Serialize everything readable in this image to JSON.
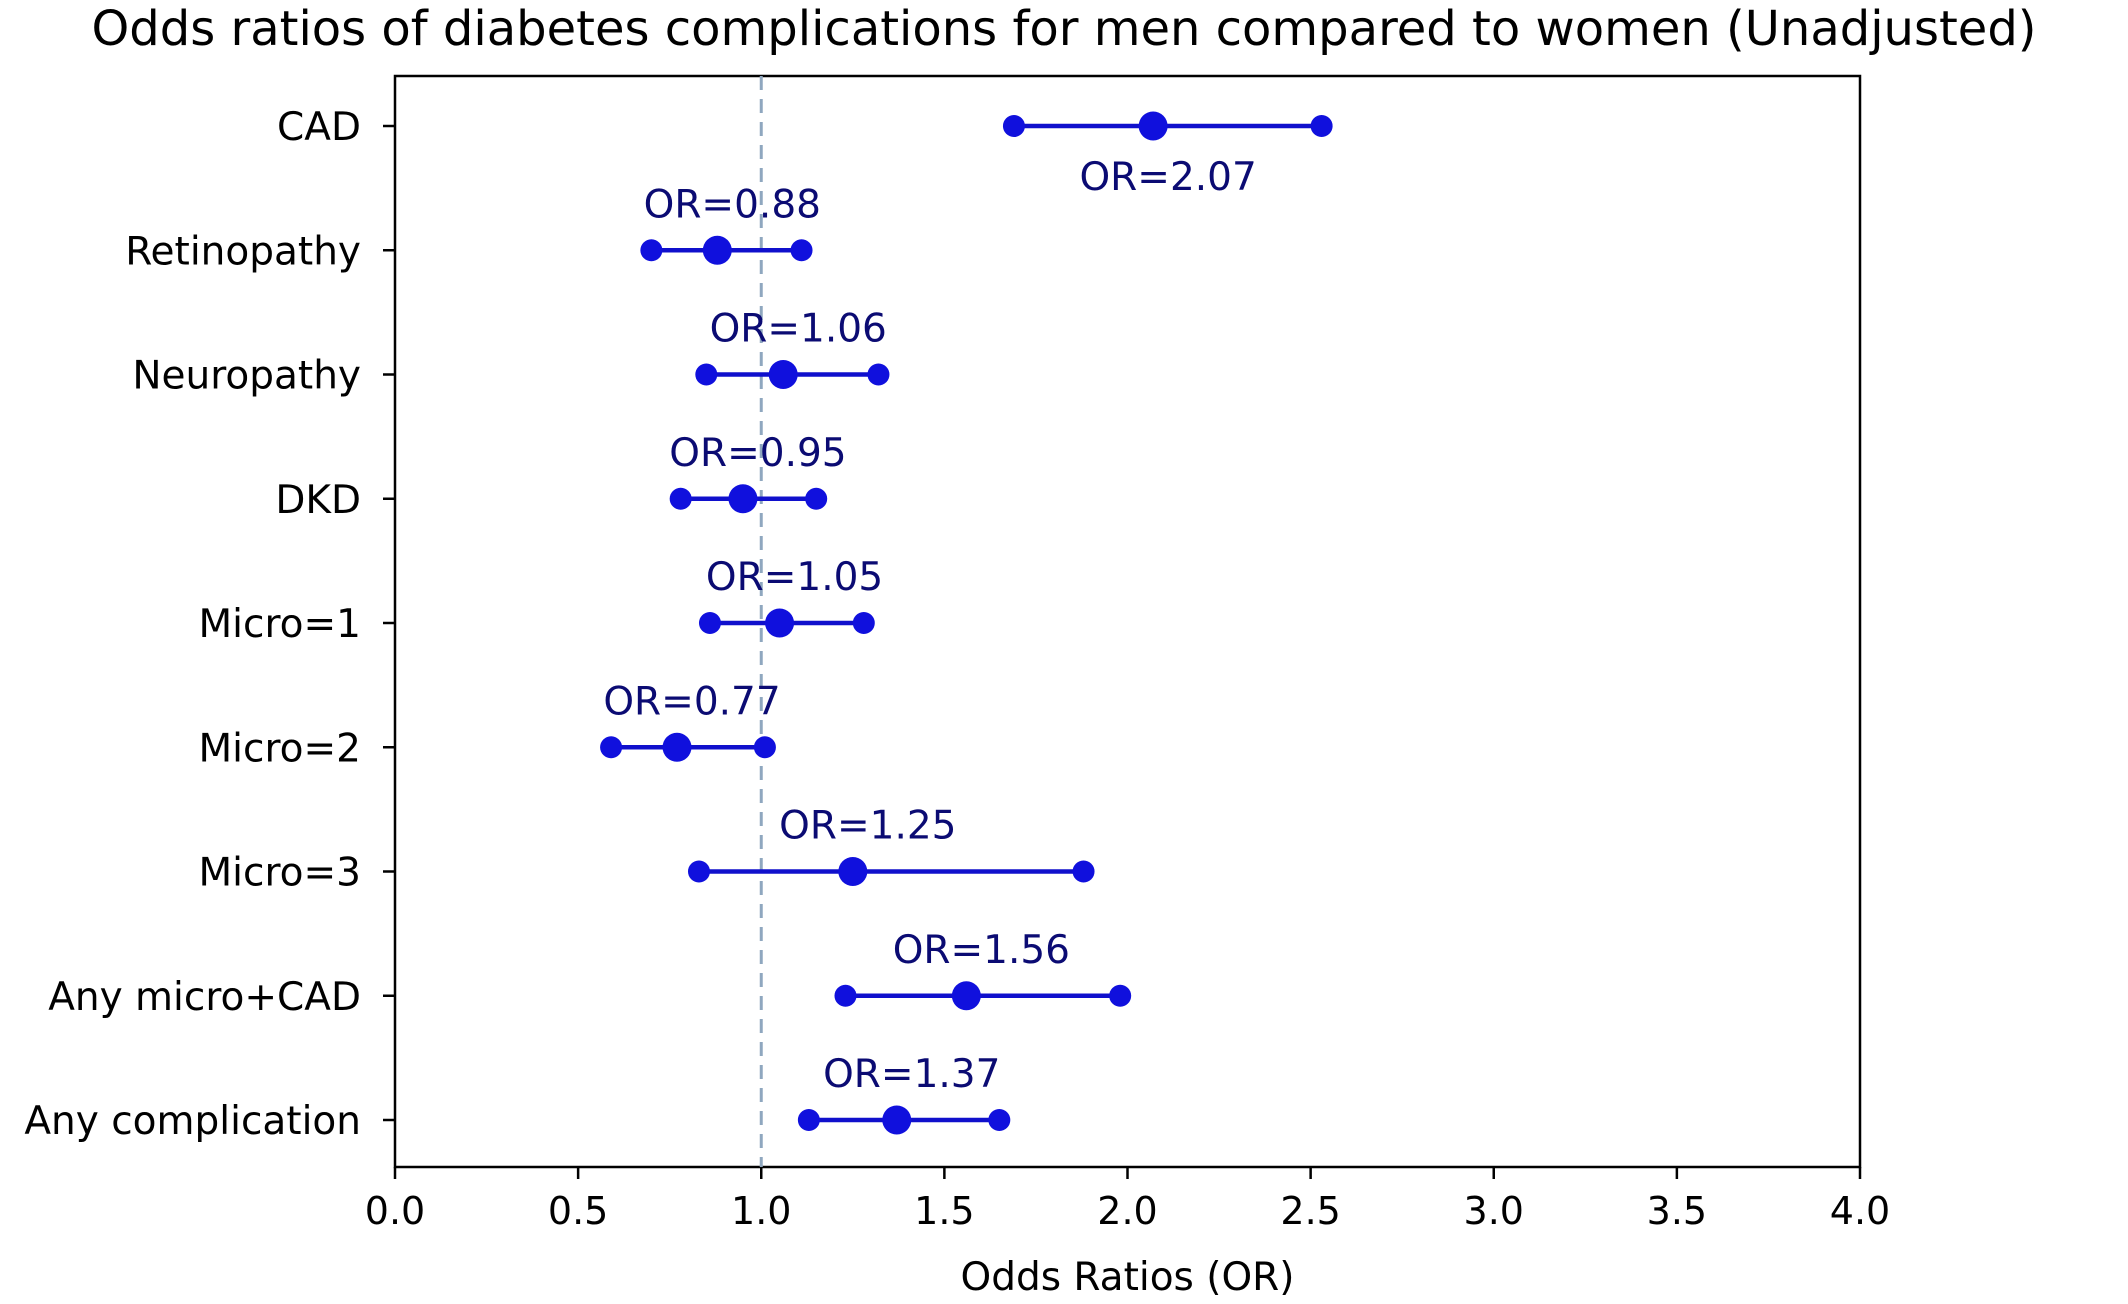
{
  "chart_data": {
    "type": "scatter",
    "title": "Odds ratios of diabetes complications for men compared to women (Unadjusted)",
    "xlabel": "Odds Ratios (OR)",
    "ylabel": "",
    "xlim": [
      0.0,
      4.0
    ],
    "xticks": [
      "0.0",
      "0.5",
      "1.0",
      "1.5",
      "2.0",
      "2.5",
      "3.0",
      "3.5",
      "4.0"
    ],
    "reference_line": 1.0,
    "grid": false,
    "categories": [
      "CAD",
      "Retinopathy",
      "Neuropathy",
      "DKD",
      "Micro=1",
      "Micro=2",
      "Micro=3",
      "Any micro+CAD",
      "Any complication"
    ],
    "series": [
      {
        "points": [
          {
            "category": "CAD",
            "or": 2.07,
            "ci_low": 1.69,
            "ci_high": 2.53,
            "label": "OR=2.07",
            "label_position": "below"
          },
          {
            "category": "Retinopathy",
            "or": 0.88,
            "ci_low": 0.7,
            "ci_high": 1.11,
            "label": "OR=0.88",
            "label_position": "above"
          },
          {
            "category": "Neuropathy",
            "or": 1.06,
            "ci_low": 0.85,
            "ci_high": 1.32,
            "label": "OR=1.06",
            "label_position": "above"
          },
          {
            "category": "DKD",
            "or": 0.95,
            "ci_low": 0.78,
            "ci_high": 1.15,
            "label": "OR=0.95",
            "label_position": "above"
          },
          {
            "category": "Micro=1",
            "or": 1.05,
            "ci_low": 0.86,
            "ci_high": 1.28,
            "label": "OR=1.05",
            "label_position": "above"
          },
          {
            "category": "Micro=2",
            "or": 0.77,
            "ci_low": 0.59,
            "ci_high": 1.01,
            "label": "OR=0.77",
            "label_position": "above"
          },
          {
            "category": "Micro=3",
            "or": 1.25,
            "ci_low": 0.83,
            "ci_high": 1.88,
            "label": "OR=1.25",
            "label_position": "above"
          },
          {
            "category": "Any micro+CAD",
            "or": 1.56,
            "ci_low": 1.23,
            "ci_high": 1.98,
            "label": "OR=1.56",
            "label_position": "above"
          },
          {
            "category": "Any complication",
            "or": 1.37,
            "ci_low": 1.13,
            "ci_high": 1.65,
            "label": "OR=1.37",
            "label_position": "above"
          }
        ]
      }
    ],
    "colors": {
      "marker": "#1010dd",
      "line": "#1010cc",
      "label": "#0b0b73",
      "reference": "#8fa7bf"
    }
  }
}
